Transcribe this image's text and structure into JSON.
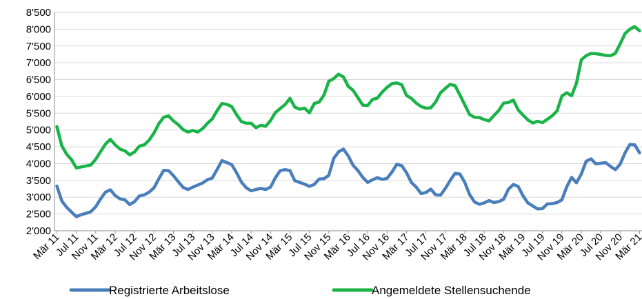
{
  "chart_data": {
    "type": "line",
    "title": "",
    "xlabel": "",
    "ylabel": "",
    "ylim": [
      2000,
      8500
    ],
    "y_ticks": [
      "2'000",
      "2'500",
      "3'000",
      "3'500",
      "4'000",
      "4'500",
      "5'000",
      "5'500",
      "6'000",
      "6'500",
      "7'000",
      "7'500",
      "8'000",
      "8'500"
    ],
    "grid": "horizontal",
    "legend_position": "bottom",
    "x_start": "Mär 11",
    "x_tick_labels": [
      "Mär 11",
      "Jul 11",
      "Nov 11",
      "Mär 12",
      "Jul 12",
      "Nov 12",
      "Mär 13",
      "Jul 13",
      "Nov 13",
      "Mär 14",
      "Jul 14",
      "Nov 14",
      "Mär 15",
      "Jul 15",
      "Nov 15",
      "Mär 16",
      "Jul 16",
      "Nov 16",
      "Mär 17",
      "Jul 17",
      "Nov 17",
      "Mär 18",
      "Jul 18",
      "Nov 18",
      "Mär 19",
      "Jul 19",
      "Nov 19",
      "Mär 20",
      "Jul 20",
      "Nov 20",
      "Mär 21"
    ],
    "series": [
      {
        "name": "Registrierte Arbeitslose",
        "color": "#4a7ebb",
        "values": [
          3330,
          2890,
          2700,
          2560,
          2420,
          2480,
          2520,
          2570,
          2720,
          2950,
          3150,
          3220,
          3050,
          2950,
          2920,
          2780,
          2870,
          3040,
          3070,
          3150,
          3280,
          3550,
          3800,
          3790,
          3640,
          3460,
          3290,
          3230,
          3300,
          3360,
          3420,
          3520,
          3570,
          3830,
          4090,
          4030,
          3970,
          3730,
          3450,
          3280,
          3190,
          3230,
          3260,
          3230,
          3300,
          3580,
          3790,
          3820,
          3790,
          3490,
          3440,
          3390,
          3320,
          3380,
          3540,
          3550,
          3650,
          4150,
          4350,
          4430,
          4230,
          3950,
          3790,
          3590,
          3440,
          3520,
          3580,
          3530,
          3560,
          3750,
          3980,
          3940,
          3730,
          3440,
          3300,
          3110,
          3140,
          3240,
          3070,
          3060,
          3260,
          3500,
          3710,
          3690,
          3440,
          3080,
          2860,
          2790,
          2830,
          2900,
          2840,
          2870,
          2940,
          3240,
          3380,
          3320,
          3040,
          2830,
          2740,
          2650,
          2660,
          2800,
          2810,
          2840,
          2920,
          3310,
          3590,
          3430,
          3690,
          4070,
          4140,
          3990,
          4010,
          4030,
          3920,
          3820,
          3980,
          4320,
          4570,
          4560,
          4320
        ]
      },
      {
        "name": "Angemeldete Stellensuchende",
        "color": "#19b347",
        "values": [
          5100,
          4530,
          4280,
          4120,
          3870,
          3900,
          3930,
          3960,
          4130,
          4360,
          4580,
          4720,
          4560,
          4430,
          4380,
          4260,
          4350,
          4520,
          4560,
          4700,
          4910,
          5190,
          5380,
          5420,
          5270,
          5160,
          5010,
          4940,
          4990,
          4940,
          5040,
          5200,
          5330,
          5580,
          5790,
          5760,
          5700,
          5460,
          5250,
          5200,
          5200,
          5070,
          5140,
          5110,
          5280,
          5520,
          5640,
          5760,
          5940,
          5680,
          5620,
          5650,
          5510,
          5790,
          5830,
          6040,
          6450,
          6530,
          6660,
          6580,
          6300,
          6180,
          5960,
          5740,
          5730,
          5910,
          5950,
          6130,
          6270,
          6380,
          6400,
          6350,
          6030,
          5940,
          5800,
          5700,
          5650,
          5660,
          5830,
          6110,
          6240,
          6360,
          6320,
          6040,
          5750,
          5460,
          5380,
          5370,
          5310,
          5270,
          5430,
          5580,
          5800,
          5820,
          5890,
          5600,
          5440,
          5300,
          5210,
          5260,
          5220,
          5320,
          5420,
          5570,
          6010,
          6110,
          6020,
          6390,
          7090,
          7210,
          7280,
          7270,
          7250,
          7220,
          7210,
          7280,
          7560,
          7870,
          8000,
          8080,
          7950
        ]
      }
    ]
  }
}
